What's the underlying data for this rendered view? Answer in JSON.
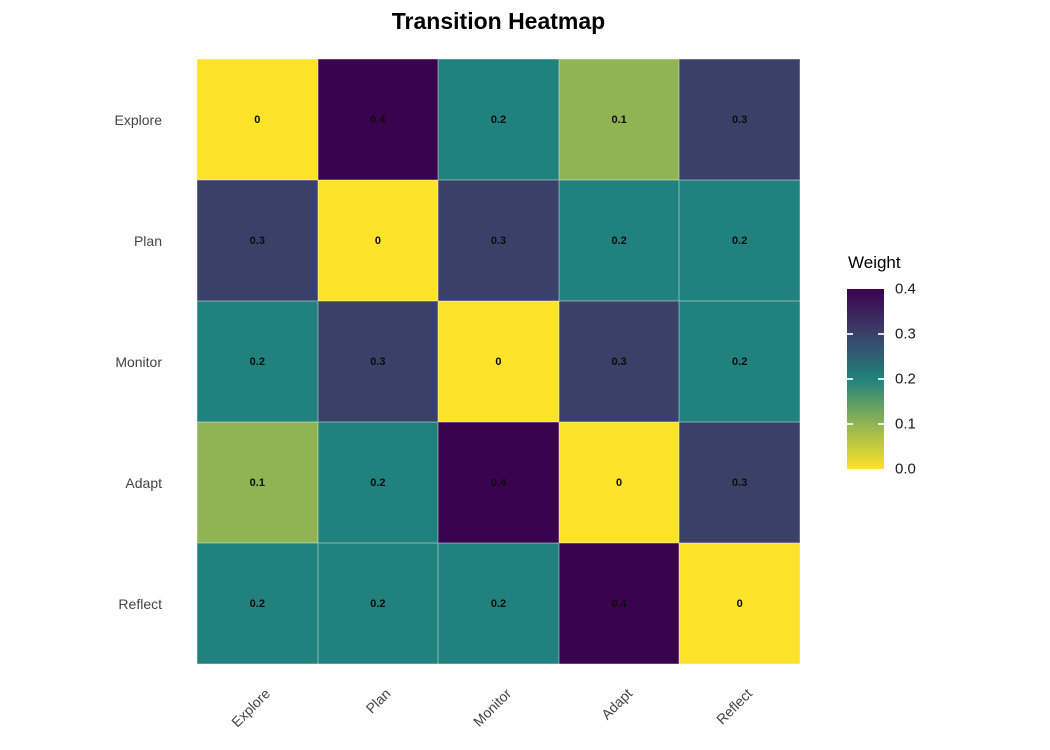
{
  "title": "Transition Heatmap",
  "chart_data": {
    "type": "heatmap",
    "title": "Transition Heatmap",
    "x_categories": [
      "Explore",
      "Plan",
      "Monitor",
      "Adapt",
      "Reflect"
    ],
    "y_categories": [
      "Explore",
      "Plan",
      "Monitor",
      "Adapt",
      "Reflect"
    ],
    "values": [
      [
        0,
        0.4,
        0.2,
        0.1,
        0.3
      ],
      [
        0.3,
        0,
        0.3,
        0.2,
        0.2
      ],
      [
        0.2,
        0.3,
        0,
        0.3,
        0.2
      ],
      [
        0.1,
        0.2,
        0.4,
        0,
        0.3
      ],
      [
        0.2,
        0.2,
        0.2,
        0.4,
        0
      ]
    ],
    "cell_labels": [
      [
        "0",
        "0.4",
        "0.2",
        "0.1",
        "0.3"
      ],
      [
        "0.3",
        "0",
        "0.3",
        "0.2",
        "0.2"
      ],
      [
        "0.2",
        "0.3",
        "0",
        "0.3",
        "0.2"
      ],
      [
        "0.1",
        "0.2",
        "0.4",
        "0",
        "0.3"
      ],
      [
        "0.2",
        "0.2",
        "0.2",
        "0.4",
        "0"
      ]
    ],
    "legend": {
      "title": "Weight",
      "tick_labels": [
        "0.4",
        "0.3",
        "0.2",
        "0.1",
        "0.0"
      ],
      "range": [
        0.0,
        0.4
      ],
      "position": "right"
    },
    "colorscale": {
      "name": "viridis-reversed",
      "stops": [
        {
          "value": 0.0,
          "color": "#FDE22A"
        },
        {
          "value": 0.1,
          "color": "#90B453"
        },
        {
          "value": 0.2,
          "color": "#21827D"
        },
        {
          "value": 0.3,
          "color": "#3A4169"
        },
        {
          "value": 0.4,
          "color": "#3A0350"
        }
      ]
    },
    "grid_on": false,
    "cell_text_color": "#0d0d0d",
    "axis_text_color": "#444444"
  }
}
